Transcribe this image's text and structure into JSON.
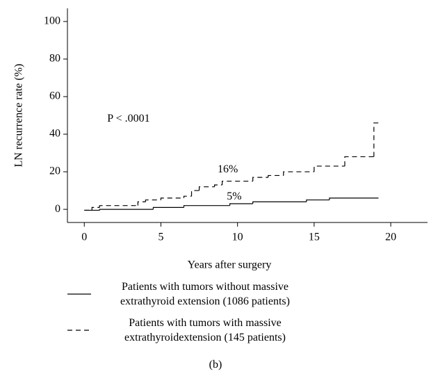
{
  "chart_data": {
    "type": "line",
    "step": "post",
    "xlabel": "Years after surgery",
    "ylabel": "LN recurrence rate (%)",
    "xlim": [
      -1.1,
      22.4
    ],
    "xticks": [
      0,
      5,
      10,
      15,
      20
    ],
    "ylim": [
      -7,
      107
    ],
    "yticks": [
      0,
      20,
      40,
      60,
      80,
      100
    ],
    "series": [
      {
        "name": "Patients with tumors without massive extrathyroid extension (1086 patients)",
        "color": "#000000",
        "dash": "solid",
        "x": [
          0,
          1,
          4.5,
          6.5,
          9.5,
          11,
          14.5,
          16,
          19.2
        ],
        "values": [
          -0.5,
          0,
          1,
          2,
          3,
          4,
          5,
          6,
          6
        ]
      },
      {
        "name": "Patients with tumors with massive extrathyroidextension (145 patients)",
        "color": "#000000",
        "dash": "dashed",
        "x": [
          0,
          0.5,
          1,
          3.5,
          4,
          5,
          6.5,
          7,
          7.5,
          8.5,
          9,
          11,
          12,
          13,
          15,
          17,
          18.9,
          19.3
        ],
        "values": [
          -0.5,
          1,
          2,
          4,
          5,
          6,
          7,
          10,
          12,
          13,
          15,
          17,
          18,
          20,
          23,
          28,
          46,
          46
        ]
      }
    ],
    "annotations": [
      {
        "text": "P < .0001",
        "x": 1.5,
        "y": 48
      },
      {
        "text": "16%",
        "x": 8.7,
        "y": 21
      },
      {
        "text": "5%",
        "x": 9.3,
        "y": 6.5
      }
    ],
    "caption": "(b)"
  }
}
